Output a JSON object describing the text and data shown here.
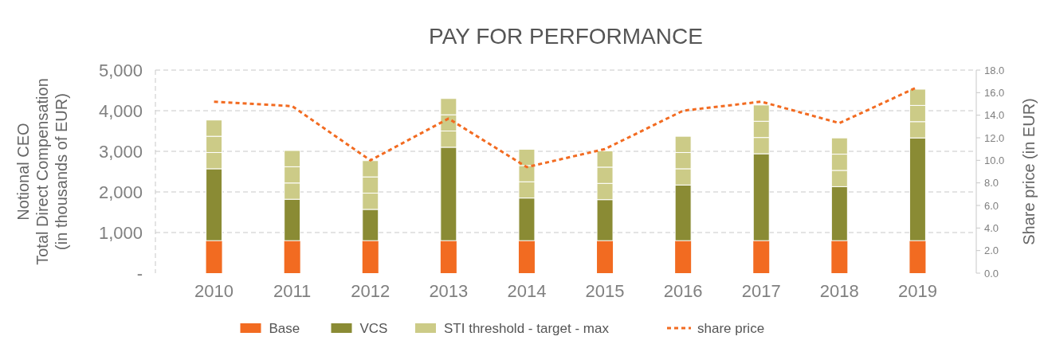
{
  "chart_data": {
    "type": "bar",
    "title": "PAY FOR PERFORMANCE",
    "ylabel": "Notional CEO\nTotal Direct Compensation\n(in thousands of EUR)",
    "y2label": "Share price (in EUR)",
    "categories": [
      "2010",
      "2011",
      "2012",
      "2013",
      "2014",
      "2015",
      "2016",
      "2017",
      "2018",
      "2019"
    ],
    "stacked": true,
    "series": [
      {
        "name": "Base",
        "color": "#f26b21",
        "values": [
          800,
          800,
          800,
          800,
          800,
          800,
          800,
          800,
          800,
          800
        ]
      },
      {
        "name": "VCS",
        "color": "#8a8b34",
        "values": [
          1770,
          1020,
          770,
          2300,
          1050,
          1010,
          1370,
          2140,
          1330,
          2530
        ]
      },
      {
        "name": "STI threshold - target - max",
        "color": "#cccb87",
        "values": [
          400,
          400,
          400,
          400,
          400,
          400,
          400,
          400,
          400,
          400
        ]
      },
      {
        "color": "#cccb87",
        "values": [
          400,
          400,
          400,
          400,
          400,
          400,
          400,
          400,
          400,
          400
        ]
      },
      {
        "color": "#cccb87",
        "values": [
          400,
          400,
          400,
          400,
          400,
          400,
          400,
          400,
          400,
          400
        ]
      },
      {
        "name": "share price",
        "type": "line",
        "axis": "y2",
        "color": "#f26b21",
        "line_style": "dashed",
        "values": [
          15.2,
          14.8,
          10.0,
          13.7,
          9.4,
          11.0,
          14.4,
          15.2,
          13.3,
          16.5
        ]
      }
    ],
    "ylim": [
      0,
      5000
    ],
    "yticks": [
      {
        "value": 0,
        "label": "-"
      },
      {
        "value": 1000,
        "label": "1,000"
      },
      {
        "value": 2000,
        "label": "2,000"
      },
      {
        "value": 3000,
        "label": "3,000"
      },
      {
        "value": 4000,
        "label": "4,000"
      },
      {
        "value": 5000,
        "label": "5,000"
      }
    ],
    "y2lim": [
      0,
      18
    ],
    "y2ticks": [
      {
        "value": 0,
        "label": "0.0"
      },
      {
        "value": 2,
        "label": "2.0"
      },
      {
        "value": 4,
        "label": "4.0"
      },
      {
        "value": 6,
        "label": "6.0"
      },
      {
        "value": 8,
        "label": "8.0"
      },
      {
        "value": 10,
        "label": "10.0"
      },
      {
        "value": 12,
        "label": "12.0"
      },
      {
        "value": 14,
        "label": "14.0"
      },
      {
        "value": 16,
        "label": "16.0"
      },
      {
        "value": 18,
        "label": "18.0"
      }
    ],
    "grid": "y",
    "legend": "bottom"
  }
}
